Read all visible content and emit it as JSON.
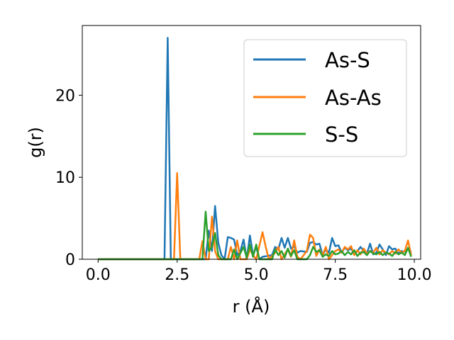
{
  "chart_data": {
    "type": "line",
    "xlabel": "r (Å)",
    "ylabel": "g(r)",
    "xlim": [
      -0.5,
      10.2
    ],
    "ylim": [
      0,
      28.5
    ],
    "x_ticks": [
      0.0,
      2.5,
      5.0,
      7.5,
      10.0
    ],
    "x_tick_labels": [
      "0.0",
      "2.5",
      "5.0",
      "7.5",
      "10.0"
    ],
    "y_ticks": [
      0,
      10,
      20
    ],
    "y_tick_labels": [
      "0",
      "10",
      "20"
    ],
    "grid": false,
    "legend_position": "top-right",
    "series": [
      {
        "name": "As-S",
        "color": "#1f77b4",
        "points": [
          [
            0.0,
            0
          ],
          [
            2.1,
            0
          ],
          [
            2.2,
            27.0
          ],
          [
            2.3,
            0
          ],
          [
            3.4,
            0
          ],
          [
            3.5,
            3.5
          ],
          [
            3.6,
            1
          ],
          [
            3.7,
            6.5
          ],
          [
            3.8,
            2
          ],
          [
            3.9,
            0.5
          ],
          [
            4.0,
            0
          ],
          [
            4.1,
            2.7
          ],
          [
            4.2,
            2.6
          ],
          [
            4.3,
            2.4
          ],
          [
            4.4,
            0.5
          ],
          [
            4.5,
            1
          ],
          [
            4.6,
            2.4
          ],
          [
            4.7,
            0
          ],
          [
            4.8,
            2.9
          ],
          [
            4.9,
            0.5
          ],
          [
            5.0,
            1.5
          ],
          [
            5.1,
            0
          ],
          [
            5.2,
            0.3
          ],
          [
            5.5,
            0.5
          ],
          [
            5.6,
            1.5
          ],
          [
            5.7,
            1.2
          ],
          [
            5.8,
            2.6
          ],
          [
            5.9,
            1.4
          ],
          [
            6.0,
            2.6
          ],
          [
            6.1,
            1.3
          ],
          [
            6.2,
            1.6
          ],
          [
            6.3,
            0.8
          ],
          [
            6.4,
            1
          ],
          [
            6.6,
            0.9
          ],
          [
            6.7,
            2
          ],
          [
            6.8,
            2.1
          ],
          [
            6.9,
            1.8
          ],
          [
            7.0,
            1.9
          ],
          [
            7.1,
            0.5
          ],
          [
            7.2,
            1.2
          ],
          [
            7.3,
            0.8
          ],
          [
            7.4,
            2.6
          ],
          [
            7.5,
            1.6
          ],
          [
            7.6,
            1.7
          ],
          [
            7.7,
            0.8
          ],
          [
            7.8,
            1.4
          ],
          [
            7.9,
            1.1
          ],
          [
            8.0,
            1.3
          ],
          [
            8.1,
            0.6
          ],
          [
            8.2,
            1
          ],
          [
            8.3,
            1.5
          ],
          [
            8.4,
            1
          ],
          [
            8.5,
            0.7
          ],
          [
            8.6,
            1.9
          ],
          [
            8.7,
            0.6
          ],
          [
            8.8,
            0.8
          ],
          [
            8.9,
            1.8
          ],
          [
            9.0,
            1.2
          ],
          [
            9.1,
            0.5
          ],
          [
            9.2,
            1.6
          ],
          [
            9.3,
            1.2
          ],
          [
            9.4,
            1.3
          ],
          [
            9.5,
            0.7
          ],
          [
            9.6,
            1
          ],
          [
            9.7,
            0.9
          ],
          [
            9.8,
            1.3
          ],
          [
            9.9,
            0.9
          ]
        ]
      },
      {
        "name": "As-As",
        "color": "#ff7f0e",
        "points": [
          [
            0.0,
            0
          ],
          [
            2.4,
            0
          ],
          [
            2.5,
            10.5
          ],
          [
            2.6,
            0
          ],
          [
            3.2,
            0
          ],
          [
            3.3,
            2.2
          ],
          [
            3.4,
            0
          ],
          [
            3.5,
            0
          ],
          [
            3.6,
            5.2
          ],
          [
            3.7,
            1
          ],
          [
            3.8,
            0
          ],
          [
            4.1,
            0
          ],
          [
            4.2,
            1.5
          ],
          [
            4.3,
            0
          ],
          [
            4.4,
            2.3
          ],
          [
            4.5,
            0
          ],
          [
            4.7,
            0
          ],
          [
            4.8,
            1.2
          ],
          [
            4.9,
            0.5
          ],
          [
            5.0,
            0
          ],
          [
            5.2,
            3.3
          ],
          [
            5.3,
            1.5
          ],
          [
            5.4,
            0
          ],
          [
            5.6,
            0.8
          ],
          [
            5.7,
            1.5
          ],
          [
            5.8,
            0
          ],
          [
            6.0,
            1.2
          ],
          [
            6.1,
            0.3
          ],
          [
            6.2,
            2.3
          ],
          [
            6.3,
            0.3
          ],
          [
            6.4,
            0
          ],
          [
            6.6,
            1
          ],
          [
            6.7,
            3
          ],
          [
            6.8,
            2.6
          ],
          [
            6.9,
            0.4
          ],
          [
            7.0,
            1.2
          ],
          [
            7.1,
            0.5
          ],
          [
            7.2,
            1.5
          ],
          [
            7.3,
            0
          ],
          [
            7.5,
            1
          ],
          [
            7.6,
            1.2
          ],
          [
            7.7,
            0.8
          ],
          [
            7.8,
            1.5
          ],
          [
            7.9,
            1.2
          ],
          [
            8.0,
            1.6
          ],
          [
            8.1,
            0.5
          ],
          [
            8.2,
            1.1
          ],
          [
            8.3,
            0.6
          ],
          [
            8.4,
            1.3
          ],
          [
            8.5,
            0.7
          ],
          [
            8.6,
            1
          ],
          [
            8.7,
            0.8
          ],
          [
            8.8,
            1.4
          ],
          [
            8.9,
            0.6
          ],
          [
            9.0,
            1.1
          ],
          [
            9.1,
            0.8
          ],
          [
            9.2,
            0.6
          ],
          [
            9.3,
            1
          ],
          [
            9.4,
            0.7
          ],
          [
            9.5,
            1.2
          ],
          [
            9.6,
            0.8
          ],
          [
            9.7,
            1
          ],
          [
            9.8,
            2.3
          ],
          [
            9.9,
            0.5
          ]
        ]
      },
      {
        "name": "S-S",
        "color": "#2ca02c",
        "points": [
          [
            0.0,
            0
          ],
          [
            3.3,
            0
          ],
          [
            3.4,
            5.8
          ],
          [
            3.5,
            1
          ],
          [
            3.6,
            1.5
          ],
          [
            3.7,
            3.2
          ],
          [
            3.8,
            0.5
          ],
          [
            3.9,
            0
          ],
          [
            4.2,
            0
          ],
          [
            4.3,
            1.2
          ],
          [
            4.4,
            0
          ],
          [
            4.6,
            1.5
          ],
          [
            4.7,
            0.2
          ],
          [
            4.8,
            1.8
          ],
          [
            4.9,
            0.3
          ],
          [
            5.0,
            1.8
          ],
          [
            5.1,
            0
          ],
          [
            5.5,
            0
          ],
          [
            5.6,
            1.2
          ],
          [
            5.7,
            0.5
          ],
          [
            5.8,
            1
          ],
          [
            5.9,
            0.2
          ],
          [
            6.0,
            1.3
          ],
          [
            6.1,
            0.4
          ],
          [
            6.2,
            1.1
          ],
          [
            6.3,
            0
          ],
          [
            6.6,
            0
          ],
          [
            6.7,
            0.5
          ],
          [
            6.8,
            1.5
          ],
          [
            6.9,
            0.9
          ],
          [
            7.0,
            1.1
          ],
          [
            7.1,
            0.3
          ],
          [
            7.2,
            0.6
          ],
          [
            7.3,
            0.4
          ],
          [
            7.4,
            1
          ],
          [
            7.5,
            0.6
          ],
          [
            7.6,
            0.7
          ],
          [
            7.7,
            1
          ],
          [
            7.8,
            0.5
          ],
          [
            7.9,
            0.9
          ],
          [
            8.0,
            0.6
          ],
          [
            8.1,
            1.1
          ],
          [
            8.2,
            0.4
          ],
          [
            8.3,
            0.8
          ],
          [
            8.4,
            0.9
          ],
          [
            8.5,
            0.5
          ],
          [
            8.6,
            1
          ],
          [
            8.7,
            0.7
          ],
          [
            8.8,
            0.6
          ],
          [
            8.9,
            0.9
          ],
          [
            9.0,
            0.5
          ],
          [
            9.1,
            0.8
          ],
          [
            9.2,
            0.7
          ],
          [
            9.3,
            0.4
          ],
          [
            9.4,
            0.9
          ],
          [
            9.5,
            0.6
          ],
          [
            9.6,
            0.8
          ],
          [
            9.7,
            0.5
          ],
          [
            9.8,
            1.4
          ],
          [
            9.9,
            0.3
          ]
        ]
      }
    ]
  }
}
